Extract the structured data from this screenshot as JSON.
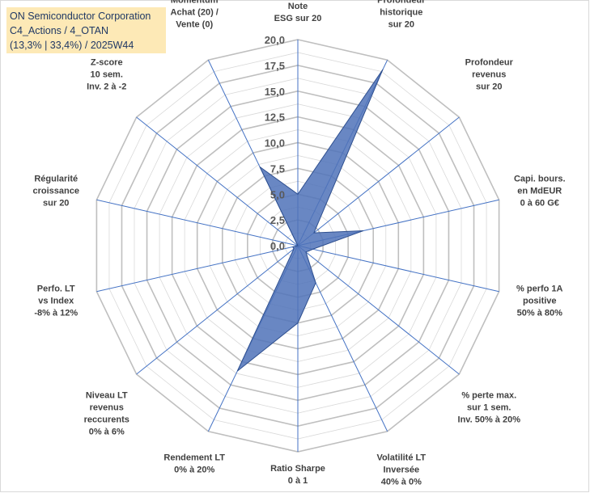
{
  "header": {
    "line1": "ON Semiconductor Corporation",
    "line2": "C4_Actions / 4_OTAN",
    "line3": "(13,3% | 33,4%) / 2025W44"
  },
  "chart_data": {
    "type": "radar",
    "rmax": 20,
    "ticks": [
      "0,0",
      "2,5",
      "5,0",
      "7,5",
      "10,0",
      "12,5",
      "15,0",
      "17,5",
      "20,0"
    ],
    "axes": [
      {
        "label": [
          "Note",
          "ESG sur 20"
        ],
        "value": 5.0
      },
      {
        "label": [
          "Profondeur",
          "historique",
          "sur 20"
        ],
        "value": 19.0
      },
      {
        "label": [
          "Profondeur",
          "revenus",
          "sur 20"
        ],
        "value": 2.0
      },
      {
        "label": [
          "Capi. bours.",
          "en MdEUR",
          "0 à 60 G€"
        ],
        "value": 6.5
      },
      {
        "label": [
          "% perfo 1A",
          "positive",
          "50% à 80%"
        ],
        "value": 1.5
      },
      {
        "label": [
          "% perte max.",
          "sur 1 sem.",
          "Inv. 50% à 20%"
        ],
        "value": 1.0
      },
      {
        "label": [
          "Volatilité LT",
          "Inversée",
          "40% à 0%"
        ],
        "value": 4.0
      },
      {
        "label": [
          "Ratio Sharpe",
          "0 à 1"
        ],
        "value": 7.5
      },
      {
        "label": [
          "Rendement LT",
          "0% à 20%"
        ],
        "value": 13.5
      },
      {
        "label": [
          "Niveau LT",
          "revenus",
          "reccurents",
          "0% à 6%"
        ],
        "value": 0.5
      },
      {
        "label": [
          "Perfo. LT",
          "vs Index",
          "-8% à 12%"
        ],
        "value": 0.5
      },
      {
        "label": [
          "Régularité",
          "croissance",
          "sur 20"
        ],
        "value": 0.0
      },
      {
        "label": [
          "Z-score",
          "10 sem.",
          "Inv. 2 à -2"
        ],
        "value": 0.0
      },
      {
        "label": [
          "Momentum",
          "Achat (20) /",
          "Vente (0)"
        ],
        "value": 8.5
      }
    ],
    "fill_color": "#4f72b8",
    "stroke_color": "#2e4f8f",
    "grid_color": "#c8c8c8",
    "spoke_color": "#4472c4"
  }
}
